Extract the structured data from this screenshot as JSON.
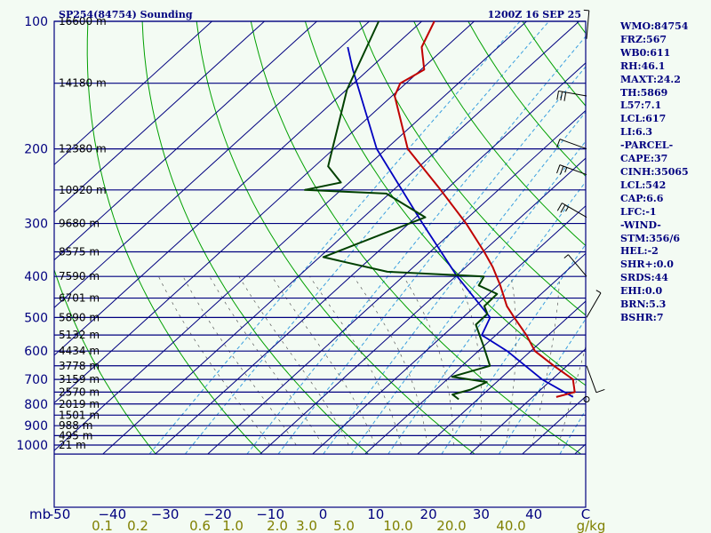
{
  "header": {
    "title": "SP254(84754) Sounding",
    "valid_time": "1200Z 16 SEP 25"
  },
  "side_panel": {
    "lines": [
      "WMO:84754",
      "FRZ:567",
      "WB0:611",
      "RH:46.1",
      "MAXT:24.2",
      "TH:5869",
      "L57:7.1",
      "LCL:617",
      "LI:6.3",
      "-PARCEL-",
      "CAPE:37",
      "CINH:35065",
      "LCL:542",
      "CAP:6.6",
      "LFC:-1",
      "-WIND-",
      "STM:356/6",
      "HEL:-2",
      "SHR+:0.0",
      "SRDS:44",
      "EHI:0.0",
      "BRN:5.3",
      "BSHR:7"
    ]
  },
  "colors": {
    "background": "#f3fbf3",
    "isobar": "#00007f",
    "isotherm": "#00007f",
    "dry_adiabat": "#00a000",
    "moist_adiabat": "#000000",
    "mixing_ratio": "#3a9fdf",
    "temperature": "#c00000",
    "dewpoint": "#004000",
    "parcel": "#0000c0",
    "axis_text": "#00007f",
    "mixing_ratio_text": "#808000"
  },
  "chart_data": {
    "type": "skew-t log-p",
    "pressure_axis": {
      "unit": "mb",
      "levels": [
        100,
        200,
        300,
        400,
        500,
        600,
        700,
        800,
        900,
        1000
      ],
      "labels": [
        "100",
        "200",
        "300",
        "400",
        "500",
        "600",
        "700",
        "800",
        "900",
        "1000"
      ],
      "range": [
        100,
        1050
      ],
      "scale": "log"
    },
    "heights": [
      {
        "p": 100,
        "label": "16600 m"
      },
      {
        "p": 140,
        "label": "14180 m"
      },
      {
        "p": 200,
        "label": "12380 m"
      },
      {
        "p": 250,
        "label": "10920 m"
      },
      {
        "p": 300,
        "label": "9680 m"
      },
      {
        "p": 350,
        "label": "8575 m"
      },
      {
        "p": 400,
        "label": "7590 m"
      },
      {
        "p": 450,
        "label": "6701 m"
      },
      {
        "p": 500,
        "label": "5890 m"
      },
      {
        "p": 550,
        "label": "5132 m"
      },
      {
        "p": 600,
        "label": "4434 m"
      },
      {
        "p": 650,
        "label": "3778 m"
      },
      {
        "p": 700,
        "label": "3159 m"
      },
      {
        "p": 750,
        "label": "2570 m"
      },
      {
        "p": 800,
        "label": "2019 m"
      },
      {
        "p": 850,
        "label": "1501 m"
      },
      {
        "p": 900,
        "label": "988 m"
      },
      {
        "p": 950,
        "label": "495 m"
      },
      {
        "p": 1000,
        "label": "21 m"
      }
    ],
    "temperature_axis": {
      "unit": "C",
      "ticks": [
        -50,
        -40,
        -30,
        -20,
        -10,
        0,
        10,
        20,
        30,
        40
      ],
      "labels": [
        "-50",
        "−40",
        "−30",
        "−20",
        "−10",
        "0",
        "10",
        "20",
        "30",
        "40"
      ]
    },
    "mixing_ratio_axis": {
      "unit": "g/kg",
      "ticks": [
        0.1,
        0.2,
        0.6,
        1.0,
        2.0,
        3.0,
        5.0,
        10.0,
        20.0,
        40.0
      ],
      "labels": [
        "0.1",
        "0.2",
        "0.6",
        "1.0",
        "2.0",
        "3.0",
        "5.0",
        "10.0",
        "20.0",
        "40.0"
      ]
    },
    "temperature_profile": [
      {
        "p": 770,
        "t": 24.5
      },
      {
        "p": 750,
        "t": 27.0
      },
      {
        "p": 700,
        "t": 24.0
      },
      {
        "p": 650,
        "t": 17.5
      },
      {
        "p": 600,
        "t": 10.8
      },
      {
        "p": 550,
        "t": 5.8
      },
      {
        "p": 500,
        "t": -0.2
      },
      {
        "p": 470,
        "t": -4.0
      },
      {
        "p": 420,
        "t": -9.6
      },
      {
        "p": 380,
        "t": -14.9
      },
      {
        "p": 350,
        "t": -19.7
      },
      {
        "p": 300,
        "t": -29.1
      },
      {
        "p": 250,
        "t": -41.0
      },
      {
        "p": 200,
        "t": -55.9
      },
      {
        "p": 150,
        "t": -69.5
      },
      {
        "p": 140,
        "t": -71.1
      },
      {
        "p": 130,
        "t": -69.4
      },
      {
        "p": 115,
        "t": -74.6
      },
      {
        "p": 100,
        "t": -77.6
      }
    ],
    "dewpoint_profile": [
      {
        "p": 780,
        "t": 6.4
      },
      {
        "p": 760,
        "t": 4.2
      },
      {
        "p": 740,
        "t": 6.6
      },
      {
        "p": 710,
        "t": 8.1
      },
      {
        "p": 690,
        "t": 0.4
      },
      {
        "p": 650,
        "t": 5.3
      },
      {
        "p": 580,
        "t": -0.4
      },
      {
        "p": 520,
        "t": -6.0
      },
      {
        "p": 490,
        "t": -6.1
      },
      {
        "p": 470,
        "t": -8.3
      },
      {
        "p": 440,
        "t": -8.4
      },
      {
        "p": 420,
        "t": -13.7
      },
      {
        "p": 400,
        "t": -14.6
      },
      {
        "p": 390,
        "t": -34.0
      },
      {
        "p": 360,
        "t": -49.3
      },
      {
        "p": 290,
        "t": -38.2
      },
      {
        "p": 255,
        "t": -50.6
      },
      {
        "p": 250,
        "t": -66.9
      },
      {
        "p": 240,
        "t": -61.6
      },
      {
        "p": 220,
        "t": -67.4
      },
      {
        "p": 145,
        "t": -79.9
      },
      {
        "p": 100,
        "t": -88.2
      }
    ],
    "parcel_profile": [
      {
        "p": 770,
        "t": 27.7
      },
      {
        "p": 700,
        "t": 18.1
      },
      {
        "p": 600,
        "t": 5.5
      },
      {
        "p": 550,
        "t": -2.7
      },
      {
        "p": 500,
        "t": -4.8
      },
      {
        "p": 400,
        "t": -19.7
      },
      {
        "p": 300,
        "t": -37.4
      },
      {
        "p": 200,
        "t": -61.8
      },
      {
        "p": 130,
        "t": -83.0
      },
      {
        "p": 115,
        "t": -88.7
      }
    ],
    "dry_adiabats_theta_k": [
      230,
      250,
      270,
      290,
      310,
      330,
      350,
      370,
      390,
      410,
      430,
      450,
      470,
      490,
      510
    ],
    "moist_adiabats_c": [
      -20,
      -15,
      -10,
      -5,
      0,
      5,
      10,
      15,
      20,
      25,
      30,
      35
    ],
    "mixing_ratio_lines_gkg": [
      0.1,
      0.2,
      0.6,
      1.0,
      2.0,
      3.0,
      5.0,
      10.0,
      20.0,
      40.0
    ],
    "wind_barbs": [
      {
        "p": 110,
        "dir": 5,
        "spd": 5
      },
      {
        "p": 150,
        "dir": 280,
        "spd": 30
      },
      {
        "p": 200,
        "dir": 290,
        "spd": 10
      },
      {
        "p": 230,
        "dir": 290,
        "spd": 25
      },
      {
        "p": 290,
        "dir": 300,
        "spd": 25
      },
      {
        "p": 400,
        "dir": 320,
        "spd": 5
      },
      {
        "p": 500,
        "dir": 30,
        "spd": 5
      },
      {
        "p": 650,
        "dir": 160,
        "spd": 10
      },
      {
        "p": 780,
        "dir": 0,
        "spd": 0
      }
    ]
  }
}
